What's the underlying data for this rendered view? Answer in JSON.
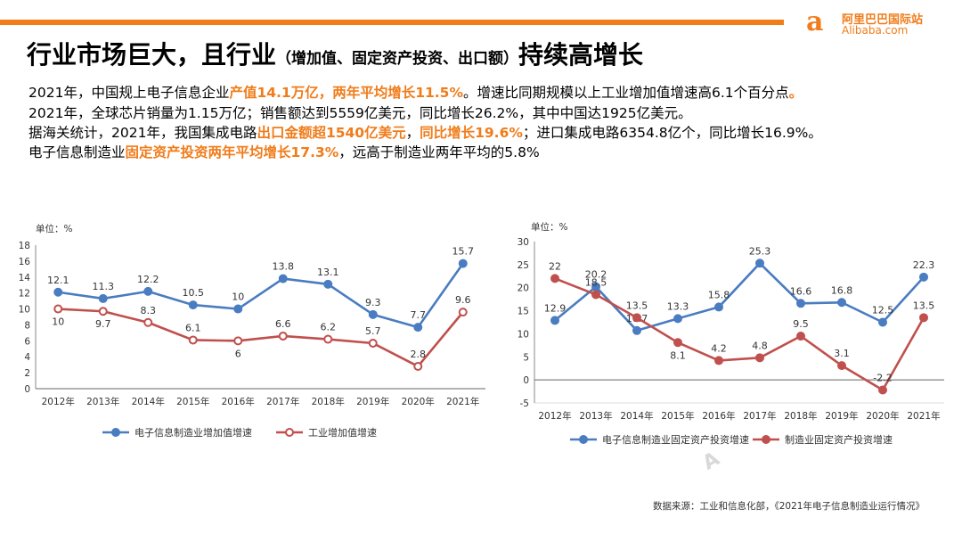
{
  "logo": {
    "mark": "a",
    "line1": "阿里巴巴国际站",
    "line2": "Alibaba.com"
  },
  "title": {
    "main": "行业市场巨大，且行业",
    "paren": "（增加值、固定资产投资、出口额）",
    "tail": "持续高增长"
  },
  "paragraphs": [
    {
      "p1": "2021年，中国规上电子信息企业",
      "h1": "产值14.1万亿，两年平均增长11.5%",
      "p2": "。增速比同期规模以上工业增加值增速高6.1个百分点",
      "h2": "。"
    },
    {
      "p1": "2021年，全球芯片销量为1.15万亿；销售额达到5559亿美元，同比增长26.2%，其中中国达1925亿美元。"
    },
    {
      "p1": "据海关统计，2021年，我国集成电路",
      "h1": "出口金额超1540亿美元",
      "p2": "，",
      "h2": "同比增长19.6%",
      "p3": "；进口集成电路6354.8亿个，同比增长16.9%。"
    },
    {
      "p1": "电子信息制造业",
      "h1": "固定资产投资两年平均增长17.3%",
      "p2": "，远高于制造业两年平均的5.8%"
    }
  ],
  "colors": {
    "blue": "#4a7cc1",
    "red": "#c0504d",
    "orange": "#f07c1a"
  },
  "chart_data": [
    {
      "type": "line",
      "unit_label": "单位：%",
      "categories": [
        "2012年",
        "2013年",
        "2014年",
        "2015年",
        "2016年",
        "2017年",
        "2018年",
        "2019年",
        "2020年",
        "2021年"
      ],
      "ylim": [
        0,
        18
      ],
      "yticks": [
        0,
        2,
        4,
        6,
        8,
        10,
        12,
        14,
        16,
        18
      ],
      "series": [
        {
          "name": "电子信息制造业增加值增速",
          "values": [
            12.1,
            11.3,
            12.2,
            10.5,
            10,
            13.8,
            13.1,
            9.3,
            7.7,
            15.7
          ],
          "labels": [
            "12.1",
            "11.3",
            "12.2",
            "10.5",
            "10",
            "13.8",
            "13.1",
            "9.3",
            "7.7",
            "15.7"
          ]
        },
        {
          "name": "工业增加值增速",
          "values": [
            10,
            9.7,
            8.3,
            6.1,
            6,
            6.6,
            6.2,
            5.7,
            2.8,
            9.6
          ],
          "labels": [
            "10",
            "9.7",
            "8.3",
            "6.1",
            "6",
            "6.6",
            "6.2",
            "5.7",
            "2.8",
            "9.6"
          ]
        }
      ]
    },
    {
      "type": "line",
      "unit_label": "单位：%",
      "categories": [
        "2012年",
        "2013年",
        "2014年",
        "2015年",
        "2016年",
        "2017年",
        "2018年",
        "2019年",
        "2020年",
        "2021年"
      ],
      "ylim": [
        -5,
        30
      ],
      "yticks": [
        -5,
        0,
        5,
        10,
        15,
        20,
        25,
        30
      ],
      "series": [
        {
          "name": "电子信息制造业固定资产投资增速",
          "values": [
            12.9,
            20.2,
            10.7,
            13.3,
            15.8,
            25.3,
            16.6,
            16.8,
            12.5,
            22.3
          ],
          "labels": [
            "12.9",
            "20.2",
            "10.7",
            "13.3",
            "15.8",
            "25.3",
            "16.6",
            "16.8",
            "12.5",
            "22.3"
          ]
        },
        {
          "name": "制造业固定资产投资增速",
          "values": [
            22,
            18.5,
            13.5,
            8.1,
            4.2,
            4.8,
            9.5,
            3.1,
            -2.2,
            13.5
          ],
          "labels": [
            "22",
            "18.5",
            "13.5",
            "8.1",
            "4.2",
            "4.8",
            "9.5",
            "3.1",
            "-2.2",
            "13.5"
          ]
        }
      ]
    }
  ],
  "source": "数据来源：工业和信息化部，《2021年电子信息制造业运行情况》",
  "watermark": "A"
}
